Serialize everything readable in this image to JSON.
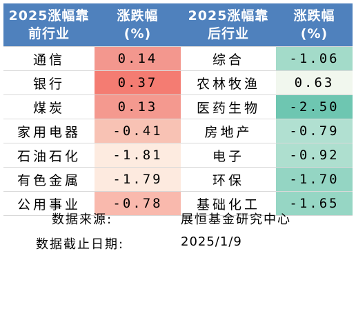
{
  "headers": {
    "pre_name": "2025涨幅靠\n前行业",
    "pre_change": "涨跌幅\n(%)",
    "post_name": "2025涨幅靠\n后行业",
    "post_change": "涨跌幅\n(%)"
  },
  "rows": [
    {
      "top_name": "通信",
      "top_value": "0.14",
      "top_color": "#f3978e",
      "bottom_name": "综合",
      "bottom_value": "-1.06",
      "bottom_color": "#a3dbc9"
    },
    {
      "top_name": "银行",
      "top_value": "0.37",
      "top_color": "#f47c72",
      "bottom_name": "农林牧渔",
      "bottom_value": "0.63",
      "bottom_color": "#f1f7ee"
    },
    {
      "top_name": "煤炭",
      "top_value": "0.13",
      "top_color": "#f4998f",
      "bottom_name": "医药生物",
      "bottom_value": "-2.50",
      "bottom_color": "#6ec6b1"
    },
    {
      "top_name": "家用电器",
      "top_value": "-0.41",
      "top_color": "#f8c2b4",
      "bottom_name": "房地产",
      "bottom_value": "-0.79",
      "bottom_color": "#b1e0d1"
    },
    {
      "top_name": "石油石化",
      "top_value": "-1.81",
      "top_color": "#fdebe0",
      "bottom_name": "电子",
      "bottom_value": "-0.92",
      "bottom_color": "#aedfcf"
    },
    {
      "top_name": "有色金属",
      "top_value": "-1.79",
      "top_color": "#fdeadf",
      "bottom_name": "环保",
      "bottom_value": "-1.70",
      "bottom_color": "#94d5c3"
    },
    {
      "top_name": "公用事业",
      "top_value": "-0.78",
      "top_color": "#f9b9ad",
      "bottom_name": "基础化工",
      "bottom_value": "-1.65",
      "bottom_color": "#96d6c4"
    }
  ],
  "footer": {
    "source_label": "数据来源:",
    "source_value": "展恒基金研究中心",
    "date_label": "数据截止日期:",
    "date_value": "2025/1/9"
  },
  "colors": {
    "header_bg": "#4f81bd",
    "header_text": "#ffffff"
  }
}
